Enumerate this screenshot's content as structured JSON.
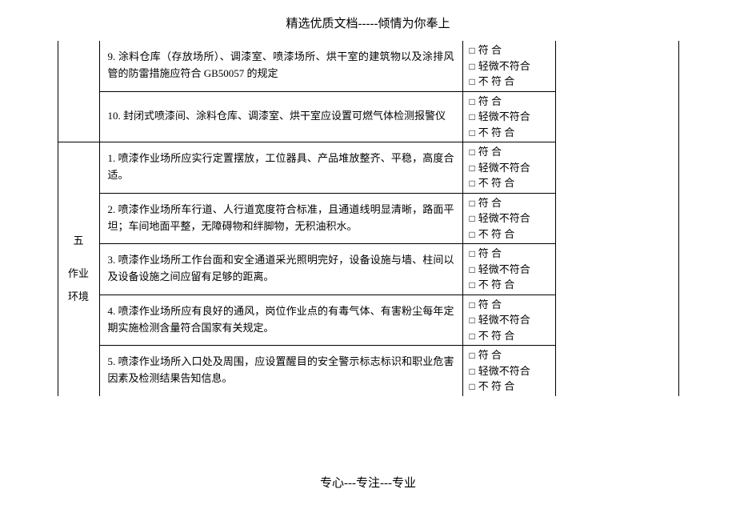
{
  "header": "精选优质文档-----倾情为你奉上",
  "footer": "专心---专注---专业",
  "check_options": [
    "符  合",
    "轻微不符合",
    "不 符 合"
  ],
  "top_rows": [
    {
      "desc": "9. 涂料仓库（存放场所）、调漆室、喷漆场所、烘干室的建筑物以及涂排风管的防雷措施应符合 GB50057 的规定"
    },
    {
      "desc": "10. 封闭式喷漆间、涂料仓库、调漆室、烘干室应设置可燃气体检测报警仪"
    }
  ],
  "section": {
    "num": "五",
    "title_l1": "作业",
    "title_l2": "环境",
    "rows": [
      {
        "desc": "1. 喷漆作业场所应实行定置摆放，工位器具、产品堆放整齐、平稳，高度合适。"
      },
      {
        "desc": "2.  喷漆作业场所车行道、人行道宽度符合标准，且通道线明显清晰，路面平坦；车间地面平整，无障碍物和绊脚物，无积油积水。"
      },
      {
        "desc": "3. 喷漆作业场所工作台面和安全通道采光照明完好，设备设施与墙、柱间以及设备设施之间应留有足够的距离。"
      },
      {
        "desc": "4.  喷漆作业场所应有良好的通风，岗位作业点的有毒气体、有害粉尘每年定期实施检测含量符合国家有关规定。"
      },
      {
        "desc": "5.  喷漆作业场所入口处及周围，应设置醒目的安全警示标志标识和职业危害因素及检测结果告知信息。"
      }
    ]
  }
}
